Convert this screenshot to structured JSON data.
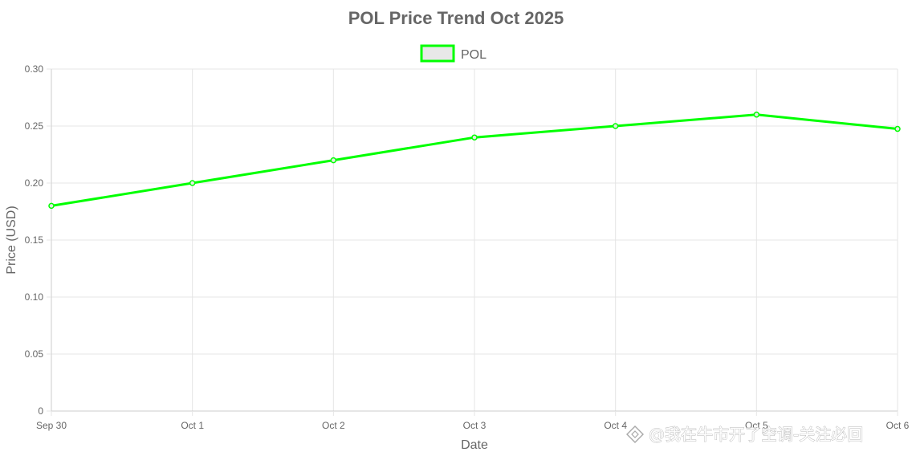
{
  "chart_data": {
    "type": "line",
    "title": "POL Price Trend Oct 2025",
    "xlabel": "Date",
    "ylabel": "Price (USD)",
    "categories": [
      "Sep 30",
      "Oct 1",
      "Oct 2",
      "Oct 3",
      "Oct 4",
      "Oct 5",
      "Oct 6"
    ],
    "series": [
      {
        "name": "POL",
        "values": [
          0.18,
          0.2,
          0.22,
          0.24,
          0.25,
          0.26,
          0.2475
        ]
      }
    ],
    "ylim": [
      0,
      0.3
    ],
    "yticks": [
      "0",
      "0.05",
      "0.10",
      "0.15",
      "0.20",
      "0.25",
      "0.30"
    ],
    "ytick_values": [
      0,
      0.05,
      0.1,
      0.15,
      0.2,
      0.25,
      0.3
    ],
    "grid": true,
    "legend_position": "top",
    "colors": {
      "line": "#00ff00",
      "legend_fill": "#e8e8e8",
      "grid": "#e5e5e5",
      "text": "#666666"
    }
  },
  "watermark": {
    "text": "@我在牛市开了空调-关注必回",
    "icon": "binance-diamond-icon"
  }
}
